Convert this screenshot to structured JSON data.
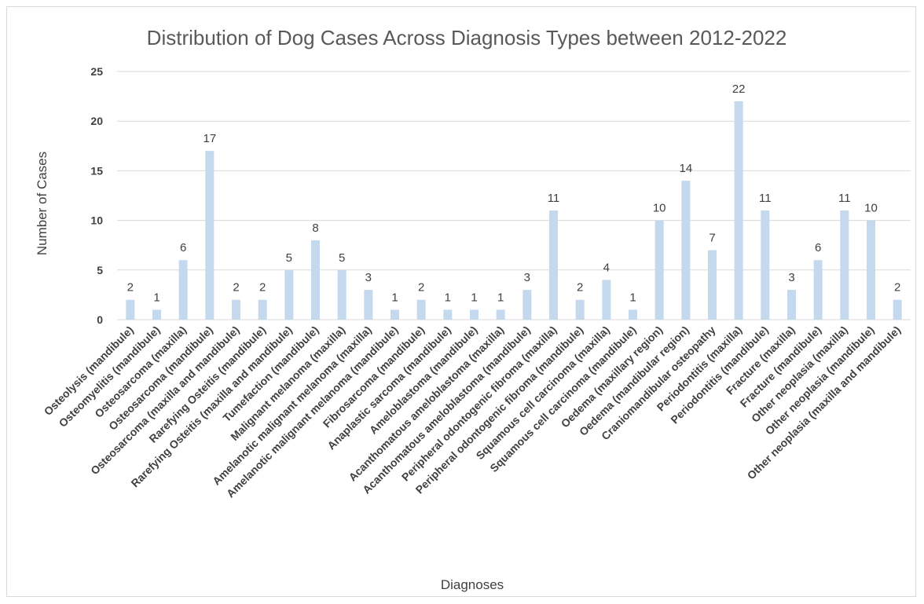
{
  "chart_data": {
    "type": "bar",
    "title": "Distribution of Dog Cases Across Diagnosis Types between 2012-2022",
    "xlabel": "Diagnoses",
    "ylabel": "Number of Cases",
    "ylim": [
      0,
      25
    ],
    "yticks": [
      "0",
      "5",
      "10",
      "15",
      "20",
      "25"
    ],
    "grid": true,
    "bar_color": "#c5d9ee",
    "categories": [
      "Osteolysis (mandibule)",
      "Osteomyelitis (mandibule)",
      "Osteosarcoma (maxilla)",
      "Osteosarcoma (mandibule)",
      "Osteosarcoma (maxilla and mandibule)",
      "Rarefying Osteitis (mandibule)",
      "Rarefying Osteitis (maxilla and mandibule)",
      "Tumefaction (mandibule)",
      "Malignant melanoma (maxilla)",
      "Amelanotic malignant melanoma (maxilla)",
      "Amelanotic malignant melanoma (mandibule)",
      "Fibrosarcoma (mandibule)",
      "Anaplastic sarcoma (mandibule)",
      "Ameloblastoma (mandibule)",
      "Acanthomatous ameloblastoma (maxilla)",
      "Acanthomatous ameloblastoma (mandibule)",
      "Peripheral odontogenic fibroma (maxilla)",
      "Peripheral odontogenic fibroma (mandibule)",
      "Squamous cell carcinoma (maxilla)",
      "Squamous cell carcinoma (mandibule)",
      "Oedema (maxillary region)",
      "Oedema (mandibular region)",
      "Craniomandibular osteopathy",
      "Periodontitis (maxilla)",
      "Periodontitis (mandibule)",
      "Fracture (maxilla)",
      "Fracture (mandibule)",
      "Other neoplasia (maxilla)",
      "Other neoplasia (mandibule)",
      "Other neoplasia (maxilla and mandibule)"
    ],
    "values": [
      2,
      1,
      6,
      17,
      2,
      2,
      5,
      8,
      5,
      3,
      1,
      2,
      1,
      1,
      1,
      3,
      11,
      2,
      4,
      1,
      10,
      14,
      7,
      22,
      11,
      3,
      6,
      11,
      10,
      2
    ]
  }
}
